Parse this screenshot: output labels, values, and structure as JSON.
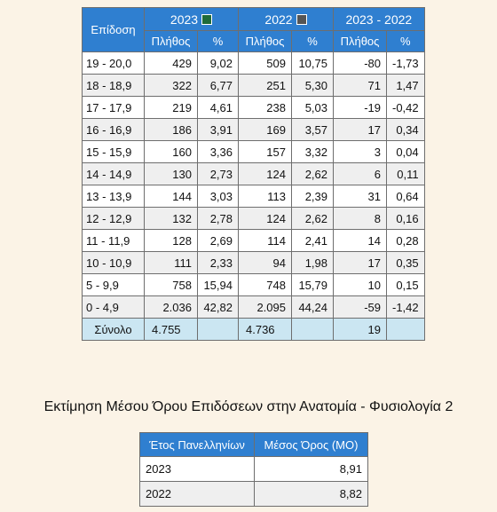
{
  "main_table": {
    "header": {
      "col_label": "Επίδοση",
      "year_a": "2023",
      "year_a_color": "#1f6b3a",
      "year_b": "2022",
      "year_b_color": "#555555",
      "diff": "2023 - 2022",
      "count": "Πλήθος",
      "pct": "%"
    },
    "rows": [
      {
        "range": "19 - 20,0",
        "a_count": "429",
        "a_pct": "9,02",
        "b_count": "509",
        "b_pct": "10,75",
        "d_count": "-80",
        "d_pct": "-1,73"
      },
      {
        "range": "18 - 18,9",
        "a_count": "322",
        "a_pct": "6,77",
        "b_count": "251",
        "b_pct": "5,30",
        "d_count": "71",
        "d_pct": "1,47"
      },
      {
        "range": "17 - 17,9",
        "a_count": "219",
        "a_pct": "4,61",
        "b_count": "238",
        "b_pct": "5,03",
        "d_count": "-19",
        "d_pct": "-0,42"
      },
      {
        "range": "16 - 16,9",
        "a_count": "186",
        "a_pct": "3,91",
        "b_count": "169",
        "b_pct": "3,57",
        "d_count": "17",
        "d_pct": "0,34"
      },
      {
        "range": "15 - 15,9",
        "a_count": "160",
        "a_pct": "3,36",
        "b_count": "157",
        "b_pct": "3,32",
        "d_count": "3",
        "d_pct": "0,04"
      },
      {
        "range": "14 - 14,9",
        "a_count": "130",
        "a_pct": "2,73",
        "b_count": "124",
        "b_pct": "2,62",
        "d_count": "6",
        "d_pct": "0,11"
      },
      {
        "range": "13 - 13,9",
        "a_count": "144",
        "a_pct": "3,03",
        "b_count": "113",
        "b_pct": "2,39",
        "d_count": "31",
        "d_pct": "0,64"
      },
      {
        "range": "12 - 12,9",
        "a_count": "132",
        "a_pct": "2,78",
        "b_count": "124",
        "b_pct": "2,62",
        "d_count": "8",
        "d_pct": "0,16"
      },
      {
        "range": "11 - 11,9",
        "a_count": "128",
        "a_pct": "2,69",
        "b_count": "114",
        "b_pct": "2,41",
        "d_count": "14",
        "d_pct": "0,28"
      },
      {
        "range": "10 - 10,9",
        "a_count": "111",
        "a_pct": "2,33",
        "b_count": "94",
        "b_pct": "1,98",
        "d_count": "17",
        "d_pct": "0,35"
      },
      {
        "range": "5 - 9,9",
        "a_count": "758",
        "a_pct": "15,94",
        "b_count": "748",
        "b_pct": "15,79",
        "d_count": "10",
        "d_pct": "0,15"
      },
      {
        "range": "0 - 4,9",
        "a_count": "2.036",
        "a_pct": "42,82",
        "b_count": "2.095",
        "b_pct": "44,24",
        "d_count": "-59",
        "d_pct": "-1,42"
      }
    ],
    "total": {
      "label": "Σύνολο",
      "a_count": "4.755",
      "b_count": "4.736",
      "d_count": "19"
    }
  },
  "estimate": {
    "title": "Εκτίμηση Μέσου Όρου Επιδόσεων στην Ανατομία - Φυσιολογία 2",
    "col_year": "Έτος Πανελληνίων",
    "col_mean": "Μέσος Όρος (ΜΟ)",
    "rows": [
      {
        "year": "2023",
        "mean": "8,91"
      },
      {
        "year": "2022",
        "mean": "8,82"
      }
    ]
  }
}
